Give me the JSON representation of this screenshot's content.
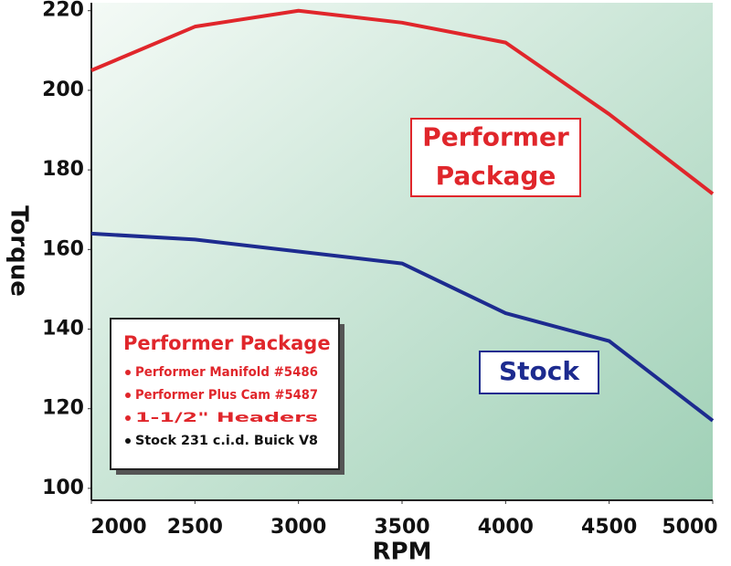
{
  "chart_data": {
    "type": "line",
    "x_label": "RPM",
    "y_label": "Torque",
    "x": [
      2000,
      2500,
      3000,
      3500,
      4000,
      4500,
      5000
    ],
    "series": [
      {
        "name": "Performer Package",
        "color": "#e0262b",
        "values": [
          205,
          216,
          220,
          217,
          212,
          194,
          174
        ]
      },
      {
        "name": "Stock",
        "color": "#1d2b8f",
        "values": [
          164,
          162.5,
          159.5,
          156.5,
          144,
          137,
          117
        ]
      }
    ],
    "xlim": [
      2000,
      5000
    ],
    "xticks": [
      2000,
      2500,
      3000,
      3500,
      4000,
      4500,
      5000
    ],
    "ylim": [
      97,
      222
    ],
    "yticks": [
      100,
      120,
      140,
      160,
      180,
      200,
      220
    ],
    "annotations": [
      {
        "lines": [
          "Performer",
          "Package"
        ],
        "color": "#e0262b"
      },
      {
        "lines": [
          "Stock"
        ],
        "color": "#1d2b8f"
      }
    ],
    "legend": {
      "title": "Performer Package",
      "title_color": "#e0262b",
      "items": [
        {
          "text": "Performer Manifold #5486",
          "color": "#e0262b"
        },
        {
          "text": "Performer Plus Cam #5487",
          "color": "#e0262b"
        },
        {
          "text": "1-1/2\" Headers",
          "color": "#e0262b"
        },
        {
          "text": "Stock 231 c.i.d. Buick V8",
          "color": "#111111"
        }
      ]
    }
  }
}
